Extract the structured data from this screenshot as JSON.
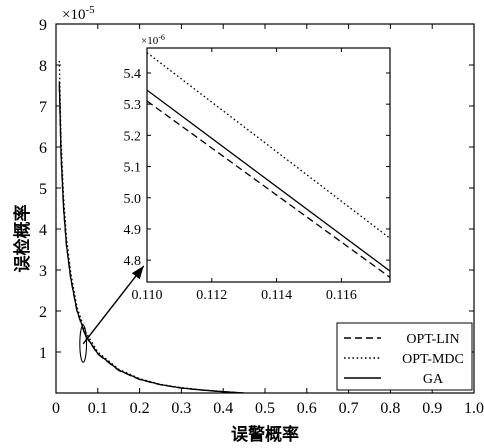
{
  "chart_data": [
    {
      "type": "line",
      "panel": "main",
      "xlabel": "误警概率",
      "ylabel": "误检概率",
      "y_exponent_label": "×10",
      "y_exponent_sup": "-5",
      "xlim": [
        0,
        1.0
      ],
      "ylim": [
        0,
        9
      ],
      "x_ticks": [
        0,
        0.1,
        0.2,
        0.3,
        0.4,
        0.5,
        0.6,
        0.7,
        0.8,
        0.9,
        1.0
      ],
      "x_tick_labels": [
        "0",
        "0.1",
        "0.2",
        "0.3",
        "0.4",
        "0.5",
        "0.6",
        "0.7",
        "0.8",
        "0.9",
        "1.0"
      ],
      "y_ticks": [
        1,
        2,
        3,
        4,
        5,
        6,
        7,
        8,
        9
      ],
      "y_tick_labels": [
        "1",
        "2",
        "3",
        "4",
        "5",
        "6",
        "7",
        "8",
        "9"
      ],
      "grid": false,
      "legend_position": "bottom-right",
      "series": [
        {
          "name": "OPT-LIN",
          "style": "dashed",
          "color": "#000000",
          "x": [
            0.008,
            0.012,
            0.018,
            0.025,
            0.035,
            0.05,
            0.07,
            0.1,
            0.15,
            0.2,
            0.25,
            0.3,
            0.35,
            0.4,
            0.45
          ],
          "y": [
            7.5,
            5.8,
            4.5,
            3.6,
            2.8,
            2.0,
            1.4,
            0.95,
            0.55,
            0.33,
            0.2,
            0.12,
            0.07,
            0.03,
            0.0
          ]
        },
        {
          "name": "OPT-MDC",
          "style": "dotted",
          "color": "#000000",
          "x": [
            0.008,
            0.012,
            0.018,
            0.025,
            0.035,
            0.05,
            0.07,
            0.1,
            0.15,
            0.2,
            0.25,
            0.3,
            0.35,
            0.4,
            0.45
          ],
          "y": [
            8.1,
            6.2,
            4.8,
            3.8,
            2.95,
            2.1,
            1.5,
            1.0,
            0.58,
            0.35,
            0.21,
            0.13,
            0.075,
            0.035,
            0.0
          ]
        },
        {
          "name": "GA",
          "style": "solid",
          "color": "#000000",
          "x": [
            0.008,
            0.012,
            0.018,
            0.025,
            0.035,
            0.05,
            0.07,
            0.1,
            0.15,
            0.2,
            0.25,
            0.3,
            0.35,
            0.4,
            0.45
          ],
          "y": [
            7.6,
            5.85,
            4.55,
            3.62,
            2.82,
            2.02,
            1.42,
            0.96,
            0.56,
            0.335,
            0.205,
            0.122,
            0.072,
            0.032,
            0.0
          ]
        }
      ],
      "annotation": {
        "ellipse_center": [
          0.065,
          1.2
        ],
        "ellipse_radii": [
          0.008,
          0.45
        ],
        "arrow_from": [
          0.065,
          1.2
        ],
        "arrow_to": [
          0.21,
          3.1
        ]
      }
    },
    {
      "type": "line",
      "panel": "inset",
      "y_exponent_label": "×10",
      "y_exponent_sup": "-6",
      "xlim": [
        0.11,
        0.1175
      ],
      "ylim": [
        4.73,
        5.48
      ],
      "x_ticks": [
        0.11,
        0.112,
        0.114,
        0.116
      ],
      "x_tick_labels": [
        "0.110",
        "0.112",
        "0.114",
        "0.116"
      ],
      "y_ticks": [
        4.8,
        4.9,
        5.0,
        5.1,
        5.2,
        5.3,
        5.4
      ],
      "y_tick_labels": [
        "4.8",
        "4.9",
        "5.0",
        "5.1",
        "5.2",
        "5.3",
        "5.4"
      ],
      "series": [
        {
          "name": "OPT-LIN",
          "style": "dashed",
          "color": "#000000",
          "x": [
            0.11,
            0.1175
          ],
          "y": [
            5.31,
            4.745
          ]
        },
        {
          "name": "OPT-MDC",
          "style": "dotted",
          "color": "#000000",
          "x": [
            0.11,
            0.1175
          ],
          "y": [
            5.465,
            4.87
          ]
        },
        {
          "name": "GA",
          "style": "solid",
          "color": "#000000",
          "x": [
            0.11,
            0.1175
          ],
          "y": [
            5.345,
            4.765
          ]
        }
      ]
    }
  ]
}
